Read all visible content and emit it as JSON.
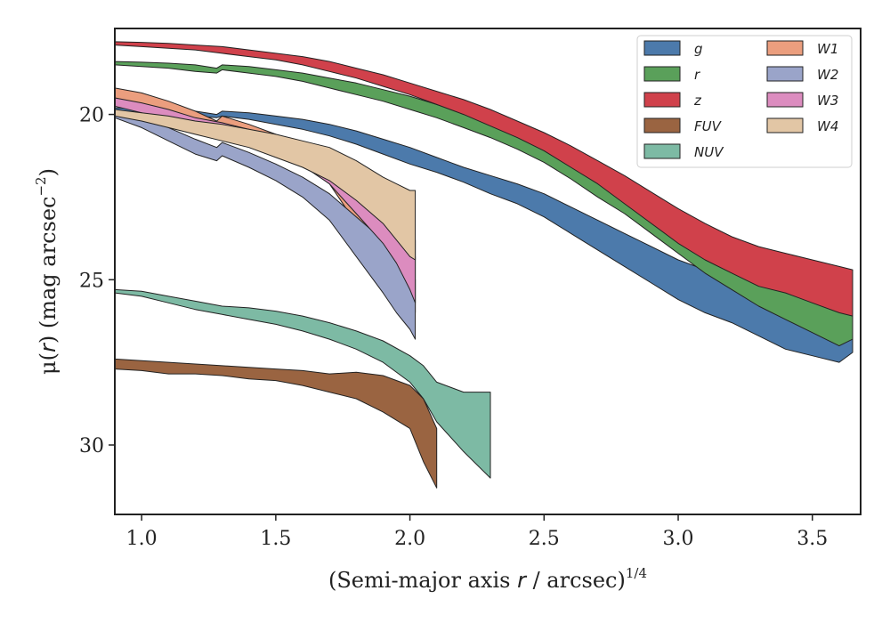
{
  "chart_data": {
    "type": "area",
    "xlabel": "(Semi-major axis r / arcsec)^1/4",
    "xlabel_parts": {
      "pre": "(Semi-major axis ",
      "var": "r",
      "post": " / arcsec)",
      "exp": "1/4"
    },
    "ylabel": "μ(r) (mag arcsec^−2)",
    "ylabel_parts": {
      "mu": "μ(",
      "var": "r",
      "mid": ") (mag arcsec",
      "exp": "−2",
      "post": ")"
    },
    "xlim": [
      0.9,
      3.68
    ],
    "ylim": [
      32.1,
      17.4
    ],
    "y_inverted": true,
    "xticks": [
      1.0,
      1.5,
      2.0,
      2.5,
      3.0,
      3.5
    ],
    "xtick_labels": [
      "1.0",
      "1.5",
      "2.0",
      "2.5",
      "3.0",
      "3.5"
    ],
    "yticks": [
      20,
      25,
      30
    ],
    "ytick_labels": [
      "20",
      "25",
      "30"
    ],
    "grid": false,
    "legend": {
      "placement": "top-right",
      "columns": 2
    },
    "series": [
      {
        "name": "g",
        "color": "#4c7aab",
        "points": [
          [
            0.9,
            19.8,
            19.9
          ],
          [
            1.0,
            19.82,
            19.95
          ],
          [
            1.1,
            19.85,
            19.98
          ],
          [
            1.2,
            19.9,
            20.05
          ],
          [
            1.28,
            20.0,
            20.1
          ],
          [
            1.3,
            19.9,
            20.05
          ],
          [
            1.4,
            19.95,
            20.15
          ],
          [
            1.5,
            20.05,
            20.3
          ],
          [
            1.6,
            20.15,
            20.45
          ],
          [
            1.7,
            20.3,
            20.65
          ],
          [
            1.8,
            20.5,
            20.9
          ],
          [
            1.9,
            20.75,
            21.2
          ],
          [
            2.0,
            21.0,
            21.5
          ],
          [
            2.1,
            21.3,
            21.75
          ],
          [
            2.2,
            21.6,
            22.05
          ],
          [
            2.3,
            21.85,
            22.4
          ],
          [
            2.4,
            22.1,
            22.7
          ],
          [
            2.5,
            22.4,
            23.1
          ],
          [
            2.6,
            22.8,
            23.6
          ],
          [
            2.7,
            23.2,
            24.1
          ],
          [
            2.8,
            23.6,
            24.6
          ],
          [
            2.9,
            24.0,
            25.1
          ],
          [
            3.0,
            24.4,
            25.6
          ],
          [
            3.1,
            24.7,
            26.0
          ],
          [
            3.2,
            25.0,
            26.3
          ],
          [
            3.3,
            25.3,
            26.7
          ],
          [
            3.4,
            25.5,
            27.1
          ],
          [
            3.5,
            25.7,
            27.3
          ],
          [
            3.6,
            25.9,
            27.5
          ],
          [
            3.65,
            26.0,
            27.2
          ]
        ]
      },
      {
        "name": "r",
        "color": "#5aa05a",
        "points": [
          [
            0.9,
            18.4,
            18.5
          ],
          [
            1.0,
            18.42,
            18.55
          ],
          [
            1.1,
            18.45,
            18.6
          ],
          [
            1.2,
            18.5,
            18.7
          ],
          [
            1.28,
            18.6,
            18.75
          ],
          [
            1.3,
            18.5,
            18.65
          ],
          [
            1.4,
            18.55,
            18.75
          ],
          [
            1.5,
            18.65,
            18.85
          ],
          [
            1.6,
            18.75,
            19.0
          ],
          [
            1.7,
            18.9,
            19.2
          ],
          [
            1.8,
            19.05,
            19.4
          ],
          [
            1.9,
            19.25,
            19.6
          ],
          [
            2.0,
            19.45,
            19.85
          ],
          [
            2.1,
            19.7,
            20.1
          ],
          [
            2.2,
            19.95,
            20.4
          ],
          [
            2.3,
            20.25,
            20.7
          ],
          [
            2.4,
            20.55,
            21.05
          ],
          [
            2.5,
            20.9,
            21.45
          ],
          [
            2.6,
            21.3,
            21.95
          ],
          [
            2.7,
            21.75,
            22.5
          ],
          [
            2.8,
            22.2,
            23.0
          ],
          [
            2.9,
            22.7,
            23.6
          ],
          [
            3.0,
            23.2,
            24.2
          ],
          [
            3.1,
            23.7,
            24.8
          ],
          [
            3.2,
            24.2,
            25.3
          ],
          [
            3.3,
            24.6,
            25.8
          ],
          [
            3.4,
            25.0,
            26.2
          ],
          [
            3.5,
            25.3,
            26.6
          ],
          [
            3.6,
            25.6,
            27.0
          ],
          [
            3.65,
            25.8,
            26.8
          ]
        ]
      },
      {
        "name": "z",
        "color": "#d0414b",
        "points": [
          [
            0.9,
            17.8,
            17.9
          ],
          [
            1.0,
            17.82,
            17.95
          ],
          [
            1.1,
            17.85,
            18.0
          ],
          [
            1.2,
            17.9,
            18.05
          ],
          [
            1.3,
            17.95,
            18.15
          ],
          [
            1.4,
            18.05,
            18.25
          ],
          [
            1.5,
            18.15,
            18.35
          ],
          [
            1.6,
            18.25,
            18.5
          ],
          [
            1.7,
            18.4,
            18.7
          ],
          [
            1.8,
            18.6,
            18.9
          ],
          [
            1.9,
            18.8,
            19.15
          ],
          [
            2.0,
            19.05,
            19.4
          ],
          [
            2.1,
            19.3,
            19.7
          ],
          [
            2.2,
            19.55,
            20.0
          ],
          [
            2.3,
            19.85,
            20.35
          ],
          [
            2.4,
            20.2,
            20.7
          ],
          [
            2.5,
            20.55,
            21.1
          ],
          [
            2.6,
            20.95,
            21.6
          ],
          [
            2.7,
            21.4,
            22.1
          ],
          [
            2.8,
            21.85,
            22.7
          ],
          [
            2.9,
            22.35,
            23.3
          ],
          [
            3.0,
            22.85,
            23.9
          ],
          [
            3.1,
            23.3,
            24.4
          ],
          [
            3.2,
            23.7,
            24.8
          ],
          [
            3.3,
            24.0,
            25.2
          ],
          [
            3.4,
            24.2,
            25.4
          ],
          [
            3.5,
            24.4,
            25.7
          ],
          [
            3.6,
            24.6,
            26.0
          ],
          [
            3.65,
            24.7,
            26.1
          ]
        ]
      },
      {
        "name": "FUV",
        "color": "#9a6441",
        "points": [
          [
            0.9,
            27.4,
            27.7
          ],
          [
            1.0,
            27.45,
            27.75
          ],
          [
            1.1,
            27.5,
            27.85
          ],
          [
            1.2,
            27.55,
            27.85
          ],
          [
            1.3,
            27.6,
            27.9
          ],
          [
            1.4,
            27.65,
            28.0
          ],
          [
            1.5,
            27.7,
            28.05
          ],
          [
            1.6,
            27.75,
            28.2
          ],
          [
            1.7,
            27.85,
            28.4
          ],
          [
            1.8,
            27.8,
            28.6
          ],
          [
            1.9,
            27.9,
            29.0
          ],
          [
            2.0,
            28.2,
            29.5
          ],
          [
            2.05,
            28.6,
            30.5
          ],
          [
            2.1,
            29.5,
            31.3
          ]
        ]
      },
      {
        "name": "NUV",
        "color": "#7dbaa4",
        "points": [
          [
            0.9,
            25.3,
            25.4
          ],
          [
            1.0,
            25.35,
            25.5
          ],
          [
            1.1,
            25.5,
            25.7
          ],
          [
            1.2,
            25.65,
            25.9
          ],
          [
            1.3,
            25.8,
            26.05
          ],
          [
            1.4,
            25.85,
            26.2
          ],
          [
            1.5,
            25.95,
            26.35
          ],
          [
            1.6,
            26.1,
            26.55
          ],
          [
            1.7,
            26.3,
            26.8
          ],
          [
            1.8,
            26.55,
            27.1
          ],
          [
            1.9,
            26.85,
            27.5
          ],
          [
            2.0,
            27.3,
            28.1
          ],
          [
            2.05,
            27.6,
            28.6
          ],
          [
            2.1,
            28.1,
            29.3
          ],
          [
            2.2,
            28.4,
            30.2
          ],
          [
            2.3,
            28.4,
            31.0
          ]
        ]
      },
      {
        "name": "W1",
        "color": "#eb9e7e",
        "points": [
          [
            0.9,
            19.2,
            19.5
          ],
          [
            1.0,
            19.35,
            19.75
          ],
          [
            1.1,
            19.6,
            20.05
          ],
          [
            1.2,
            19.9,
            20.35
          ],
          [
            1.28,
            20.2,
            20.5
          ],
          [
            1.3,
            20.05,
            20.4
          ],
          [
            1.4,
            20.3,
            20.7
          ],
          [
            1.5,
            20.6,
            21.05
          ],
          [
            1.6,
            20.95,
            21.5
          ],
          [
            1.7,
            21.4,
            22.1
          ],
          [
            1.8,
            22.2,
            23.3
          ],
          [
            1.9,
            23.0,
            24.6
          ],
          [
            1.95,
            23.5,
            25.2
          ],
          [
            2.0,
            24.0,
            25.8
          ],
          [
            2.02,
            24.3,
            26.0
          ]
        ]
      },
      {
        "name": "W2",
        "color": "#9aa4c9",
        "points": [
          [
            0.9,
            19.9,
            20.1
          ],
          [
            1.0,
            20.1,
            20.4
          ],
          [
            1.1,
            20.4,
            20.8
          ],
          [
            1.2,
            20.75,
            21.2
          ],
          [
            1.28,
            21.0,
            21.4
          ],
          [
            1.3,
            20.85,
            21.25
          ],
          [
            1.4,
            21.15,
            21.6
          ],
          [
            1.5,
            21.5,
            22.0
          ],
          [
            1.6,
            21.9,
            22.5
          ],
          [
            1.7,
            22.4,
            23.2
          ],
          [
            1.8,
            23.1,
            24.3
          ],
          [
            1.9,
            23.8,
            25.4
          ],
          [
            1.95,
            24.3,
            26.0
          ],
          [
            2.0,
            24.8,
            26.5
          ],
          [
            2.02,
            25.0,
            26.8
          ]
        ]
      },
      {
        "name": "W3",
        "color": "#dc8cbf",
        "points": [
          [
            0.9,
            19.5,
            19.75
          ],
          [
            1.0,
            19.65,
            19.95
          ],
          [
            1.1,
            19.85,
            20.2
          ],
          [
            1.2,
            20.1,
            20.45
          ],
          [
            1.3,
            20.25,
            20.65
          ],
          [
            1.4,
            20.45,
            20.9
          ],
          [
            1.5,
            20.7,
            21.2
          ],
          [
            1.6,
            21.0,
            21.55
          ],
          [
            1.7,
            21.4,
            22.1
          ],
          [
            1.8,
            22.0,
            23.0
          ],
          [
            1.9,
            22.6,
            23.9
          ],
          [
            1.95,
            23.0,
            24.5
          ],
          [
            2.0,
            23.5,
            25.3
          ],
          [
            2.02,
            23.8,
            25.7
          ]
        ]
      },
      {
        "name": "W4",
        "color": "#e2c6a5",
        "points": [
          [
            0.9,
            19.85,
            20.05
          ],
          [
            1.0,
            19.95,
            20.2
          ],
          [
            1.1,
            20.05,
            20.4
          ],
          [
            1.2,
            20.2,
            20.6
          ],
          [
            1.3,
            20.3,
            20.8
          ],
          [
            1.4,
            20.45,
            21.0
          ],
          [
            1.5,
            20.6,
            21.3
          ],
          [
            1.6,
            20.8,
            21.6
          ],
          [
            1.7,
            21.0,
            22.0
          ],
          [
            1.8,
            21.4,
            22.6
          ],
          [
            1.9,
            21.9,
            23.3
          ],
          [
            1.95,
            22.1,
            23.8
          ],
          [
            2.0,
            22.3,
            24.3
          ],
          [
            2.02,
            22.3,
            24.4
          ]
        ]
      }
    ]
  }
}
